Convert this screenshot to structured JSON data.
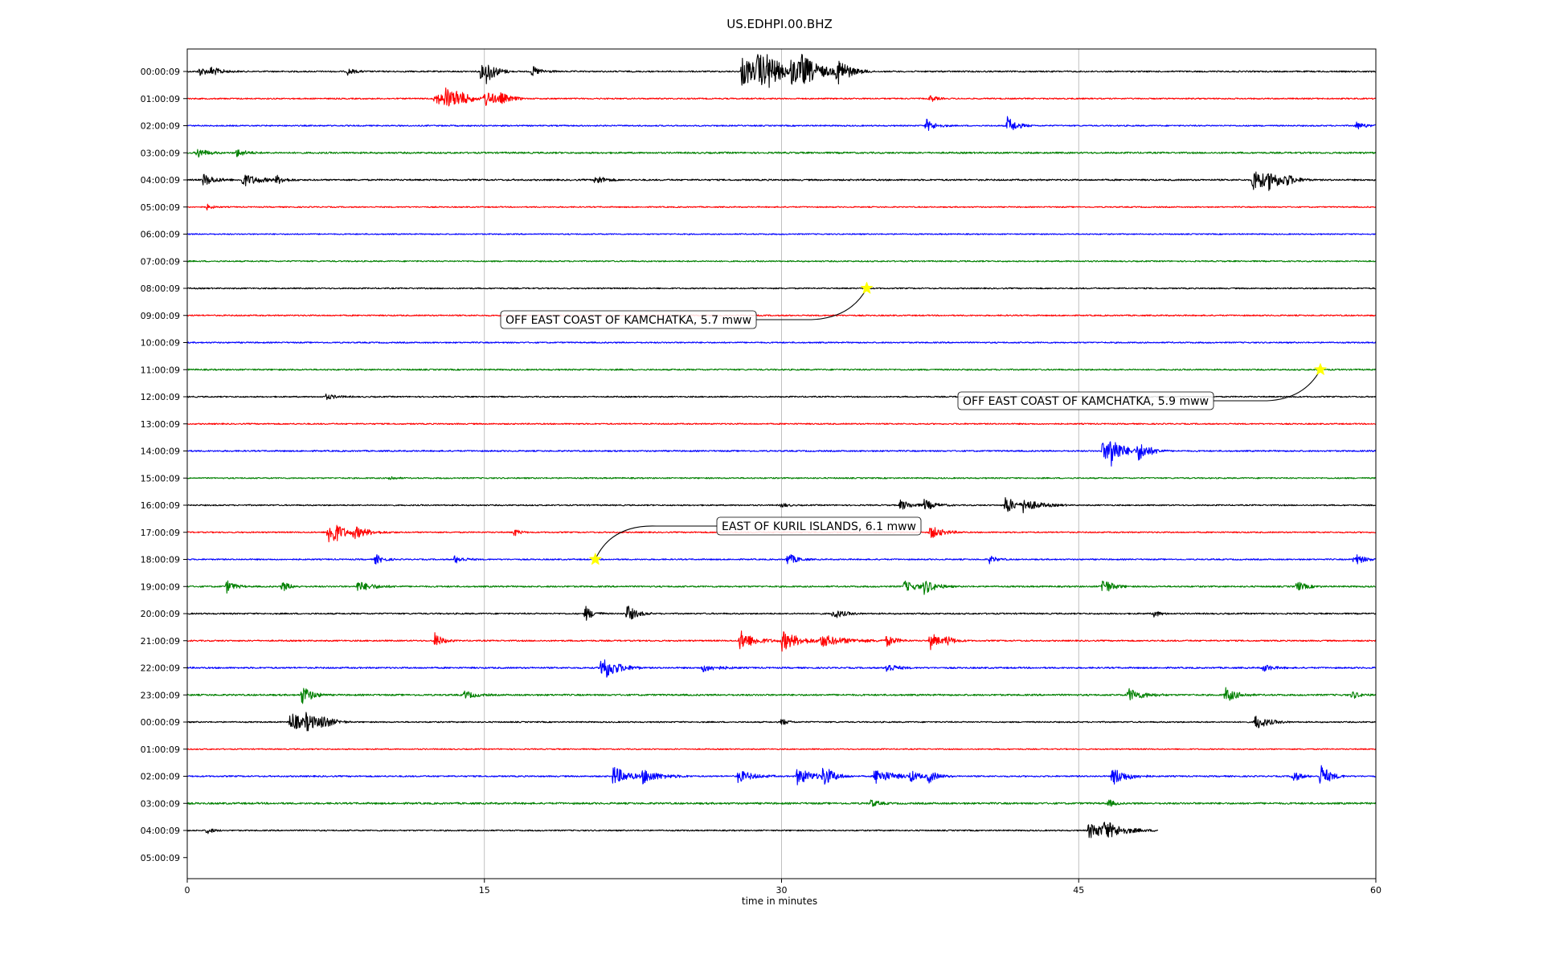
{
  "chart_data": {
    "type": "line",
    "subtype": "helicorder",
    "title": "US.EDHPI.00.BHZ",
    "xlabel": "time in minutes",
    "ylabel": "",
    "xlim": [
      0,
      60
    ],
    "xticks": [
      0,
      15,
      30,
      45,
      60
    ],
    "grid": "vertical lines at x ticks",
    "legend": "none",
    "row_labels": [
      "00:00:09",
      "01:00:09",
      "02:00:09",
      "03:00:09",
      "04:00:09",
      "05:00:09",
      "06:00:09",
      "07:00:09",
      "08:00:09",
      "09:00:09",
      "10:00:09",
      "11:00:09",
      "12:00:09",
      "13:00:09",
      "14:00:09",
      "15:00:09",
      "16:00:09",
      "17:00:09",
      "18:00:09",
      "19:00:09",
      "20:00:09",
      "21:00:09",
      "22:00:09",
      "23:00:09",
      "00:00:09",
      "01:00:09",
      "02:00:09",
      "03:00:09",
      "04:00:09",
      "05:00:09"
    ],
    "trace_colors": [
      "#000000",
      "#ff0000",
      "#0000ff",
      "#008000"
    ],
    "traces": [
      {
        "row": 0,
        "end": 60,
        "noise": 0.55,
        "bursts": [
          [
            0.6,
            3.5,
            0.5
          ],
          [
            1.2,
            3,
            0.6
          ],
          [
            8.1,
            2.5,
            0.4
          ],
          [
            14.8,
            5,
            0.6
          ],
          [
            15.1,
            7,
            0.5
          ],
          [
            17.4,
            4,
            0.5
          ],
          [
            28.0,
            12,
            1.2
          ],
          [
            28.8,
            10,
            0.9
          ],
          [
            29.3,
            8,
            0.6
          ],
          [
            30.5,
            9,
            1.2
          ],
          [
            31.0,
            8,
            1.0
          ],
          [
            32.8,
            10,
            0.7
          ]
        ]
      },
      {
        "row": 1,
        "end": 60,
        "noise": 0.5,
        "bursts": [
          [
            12.5,
            5,
            0.8
          ],
          [
            13.0,
            8,
            0.6
          ],
          [
            13.6,
            4,
            0.8
          ],
          [
            15.0,
            6,
            0.8
          ],
          [
            15.8,
            3,
            0.5
          ],
          [
            37.5,
            3,
            0.3
          ]
        ]
      },
      {
        "row": 2,
        "end": 60,
        "noise": 0.5,
        "bursts": [
          [
            37.3,
            5,
            0.5
          ],
          [
            41.4,
            7,
            0.5
          ],
          [
            59.0,
            3,
            0.5
          ]
        ]
      },
      {
        "row": 3,
        "end": 60,
        "noise": 0.65,
        "bursts": [
          [
            0.5,
            4,
            0.5
          ],
          [
            2.5,
            3,
            0.5
          ]
        ]
      },
      {
        "row": 4,
        "end": 60,
        "noise": 0.6,
        "bursts": [
          [
            0.8,
            5,
            0.6
          ],
          [
            2.8,
            5,
            0.9
          ],
          [
            4.5,
            3,
            0.5
          ],
          [
            20.6,
            4,
            0.5
          ],
          [
            53.8,
            10,
            0.8
          ],
          [
            54.6,
            5,
            0.8
          ],
          [
            55.4,
            3,
            0.6
          ]
        ]
      },
      {
        "row": 5,
        "end": 60,
        "noise": 0.45,
        "bursts": [
          [
            1.0,
            2,
            0.3
          ]
        ]
      },
      {
        "row": 6,
        "end": 60,
        "noise": 0.45,
        "bursts": []
      },
      {
        "row": 7,
        "end": 60,
        "noise": 0.5,
        "bursts": []
      },
      {
        "row": 8,
        "end": 60,
        "noise": 0.5,
        "bursts": []
      },
      {
        "row": 9,
        "end": 60,
        "noise": 0.5,
        "bursts": []
      },
      {
        "row": 10,
        "end": 60,
        "noise": 0.5,
        "bursts": []
      },
      {
        "row": 11,
        "end": 60,
        "noise": 0.55,
        "bursts": []
      },
      {
        "row": 12,
        "end": 60,
        "noise": 0.5,
        "bursts": [
          [
            7.0,
            2,
            0.6
          ]
        ]
      },
      {
        "row": 13,
        "end": 60,
        "noise": 0.5,
        "bursts": []
      },
      {
        "row": 14,
        "end": 60,
        "noise": 0.55,
        "bursts": [
          [
            46.2,
            7,
            1.2
          ],
          [
            46.6,
            11,
            0.4
          ],
          [
            48.0,
            7,
            0.6
          ]
        ]
      },
      {
        "row": 15,
        "end": 60,
        "noise": 0.5,
        "bursts": [
          [
            10.2,
            2,
            0.3
          ]
        ]
      },
      {
        "row": 16,
        "end": 60,
        "noise": 0.5,
        "bursts": [
          [
            36.0,
            4,
            0.6
          ],
          [
            37.2,
            4,
            0.6
          ],
          [
            41.3,
            8,
            0.5
          ],
          [
            42.2,
            5,
            0.9
          ],
          [
            30.0,
            2,
            0.3
          ]
        ]
      },
      {
        "row": 17,
        "end": 60,
        "noise": 0.5,
        "bursts": [
          [
            7.1,
            10,
            0.4
          ],
          [
            7.4,
            5,
            0.8
          ],
          [
            8.4,
            4,
            0.9
          ],
          [
            16.5,
            3,
            0.3
          ],
          [
            37.5,
            5,
            0.7
          ]
        ]
      },
      {
        "row": 18,
        "end": 60,
        "noise": 0.5,
        "bursts": [
          [
            9.5,
            4,
            0.4
          ],
          [
            13.5,
            3,
            0.5
          ],
          [
            30.3,
            5,
            0.5
          ],
          [
            40.5,
            3,
            0.4
          ],
          [
            58.9,
            5,
            0.5
          ]
        ]
      },
      {
        "row": 19,
        "end": 60,
        "noise": 0.6,
        "bursts": [
          [
            2.0,
            5,
            0.4
          ],
          [
            4.8,
            4,
            0.4
          ],
          [
            8.6,
            4,
            0.8
          ],
          [
            36.2,
            4,
            0.8
          ],
          [
            37.2,
            5,
            0.6
          ],
          [
            46.2,
            7,
            0.5
          ],
          [
            56.0,
            4,
            0.5
          ]
        ]
      },
      {
        "row": 20,
        "end": 60,
        "noise": 0.55,
        "bursts": [
          [
            20.1,
            6,
            0.4
          ],
          [
            22.2,
            7,
            0.5
          ],
          [
            32.6,
            4,
            0.6
          ],
          [
            48.8,
            3,
            0.3
          ]
        ]
      },
      {
        "row": 21,
        "end": 60,
        "noise": 0.55,
        "bursts": [
          [
            12.5,
            6,
            0.4
          ],
          [
            27.9,
            8,
            0.8
          ],
          [
            30.0,
            8,
            1.0
          ],
          [
            32.0,
            4,
            1.6
          ],
          [
            35.3,
            4,
            0.5
          ],
          [
            37.5,
            7,
            0.5
          ],
          [
            38.3,
            3,
            0.5
          ]
        ]
      },
      {
        "row": 22,
        "end": 60,
        "noise": 0.6,
        "bursts": [
          [
            20.9,
            11,
            0.8
          ],
          [
            26.0,
            3,
            0.8
          ],
          [
            35.3,
            4,
            0.5
          ],
          [
            54.3,
            3,
            0.5
          ]
        ]
      },
      {
        "row": 23,
        "end": 60,
        "noise": 0.65,
        "bursts": [
          [
            5.8,
            8,
            0.5
          ],
          [
            14.0,
            3,
            0.6
          ],
          [
            47.5,
            5,
            0.8
          ],
          [
            52.4,
            6,
            0.6
          ],
          [
            58.8,
            3,
            0.4
          ]
        ]
      },
      {
        "row": 24,
        "end": 60,
        "noise": 0.5,
        "bursts": [
          [
            5.2,
            8,
            0.8
          ],
          [
            6.0,
            5,
            0.8
          ],
          [
            6.8,
            4,
            0.6
          ],
          [
            30.0,
            3,
            0.3
          ],
          [
            53.9,
            6,
            0.7
          ]
        ]
      },
      {
        "row": 25,
        "end": 60,
        "noise": 0.45,
        "bursts": []
      },
      {
        "row": 26,
        "end": 60,
        "noise": 0.55,
        "bursts": [
          [
            21.5,
            8,
            0.8
          ],
          [
            23.0,
            5,
            1.0
          ],
          [
            27.8,
            5,
            0.8
          ],
          [
            30.8,
            7,
            0.8
          ],
          [
            32.1,
            8,
            0.6
          ],
          [
            34.7,
            6,
            1.0
          ],
          [
            36.5,
            4,
            0.5
          ],
          [
            37.4,
            5,
            0.5
          ],
          [
            46.7,
            7,
            0.8
          ],
          [
            55.8,
            5,
            0.4
          ],
          [
            57.2,
            10,
            0.5
          ]
        ]
      },
      {
        "row": 27,
        "end": 60,
        "noise": 0.7,
        "bursts": [
          [
            34.5,
            3,
            0.4
          ],
          [
            46.5,
            3,
            0.3
          ]
        ]
      },
      {
        "row": 28,
        "end": 49,
        "noise": 0.5,
        "bursts": [
          [
            1.0,
            3,
            0.3
          ],
          [
            45.5,
            6,
            1.4
          ],
          [
            46.3,
            5,
            0.8
          ]
        ]
      }
    ],
    "events": [
      {
        "label": "OFF EAST COAST OF KAMCHATKA, 5.7 mww",
        "row": 8,
        "minute": 34.3
      },
      {
        "label": "OFF EAST COAST OF KAMCHATKA, 5.9 mww",
        "row": 11,
        "minute": 57.2
      },
      {
        "label": "EAST OF KURIL ISLANDS, 6.1 mww",
        "row": 18,
        "minute": 20.6
      }
    ]
  }
}
